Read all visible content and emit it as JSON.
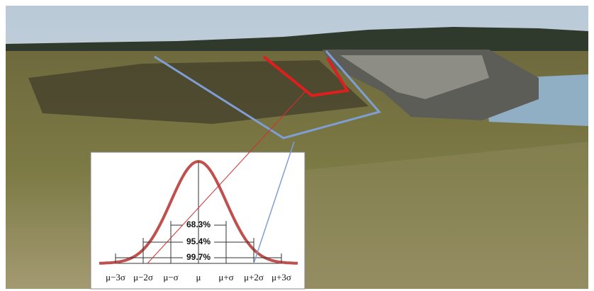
{
  "inset": {
    "intervals": [
      "68.3%",
      "95.4%",
      "99.7%"
    ],
    "axis_labels": [
      "μ−3σ",
      "μ−2σ",
      "μ−σ",
      "μ",
      "μ+σ",
      "μ+2σ",
      "μ+3σ"
    ]
  }
}
